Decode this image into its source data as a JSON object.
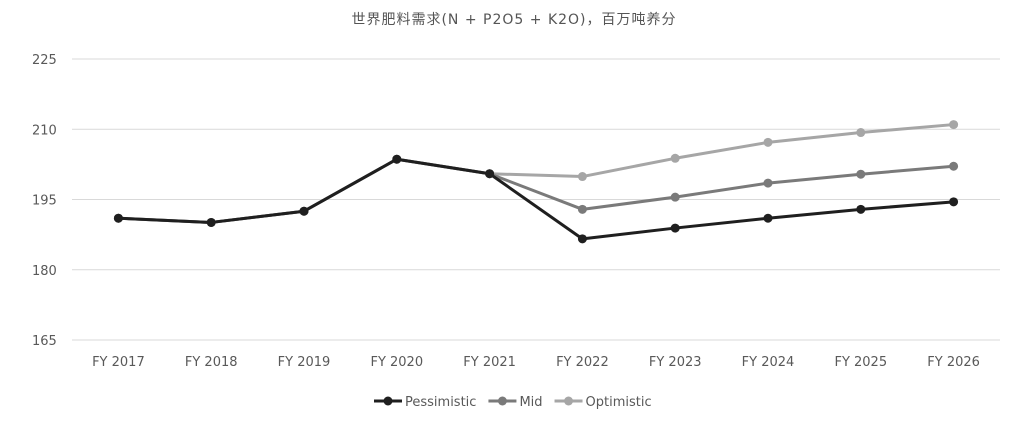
{
  "chart_data": {
    "type": "line",
    "title": "世界肥料需求(N + P2O5 + K2O)，百万吨养分",
    "xlabel": "",
    "ylabel": "",
    "categories": [
      "FY 2017",
      "FY 2018",
      "FY 2019",
      "FY 2020",
      "FY 2021",
      "FY 2022",
      "FY 2023",
      "FY 2024",
      "FY 2025",
      "FY 2026"
    ],
    "ylim": [
      165,
      225
    ],
    "yticks": [
      "165",
      "180",
      "195",
      "210",
      "225"
    ],
    "grid": true,
    "legend_position": "bottom",
    "series": [
      {
        "name": "Pessimistic",
        "color": "#1f1f1f",
        "values": [
          191.0,
          190.1,
          192.5,
          203.6,
          200.5,
          186.6,
          188.9,
          191.0,
          192.9,
          194.5
        ]
      },
      {
        "name": "Mid",
        "color": "#7a7a7a",
        "values": [
          191.0,
          190.1,
          192.5,
          203.6,
          200.5,
          192.9,
          195.5,
          198.5,
          200.4,
          202.1
        ]
      },
      {
        "name": "Optimistic",
        "color": "#a6a6a6",
        "values": [
          191.0,
          190.1,
          192.5,
          203.6,
          200.5,
          199.9,
          203.8,
          207.2,
          209.3,
          211.0
        ]
      }
    ]
  }
}
